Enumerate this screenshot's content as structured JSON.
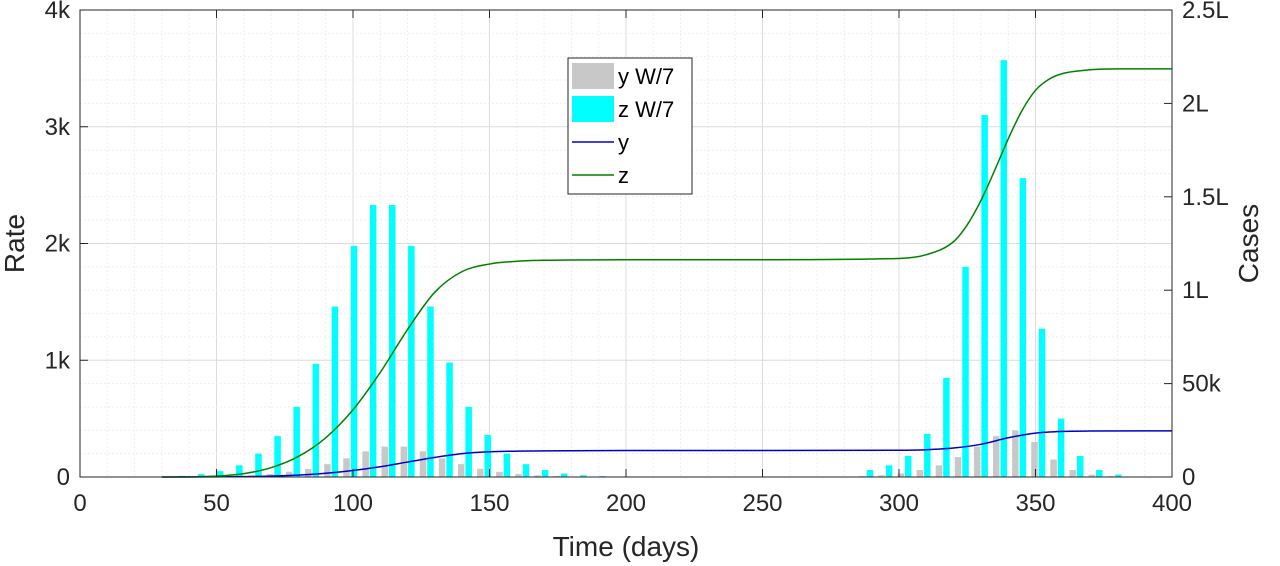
{
  "chart_data": {
    "type": "bar+line",
    "title": "",
    "xlabel": "Time (days)",
    "ylabel_left": "Rate",
    "ylabel_right": "Cases",
    "xlim": [
      0,
      400
    ],
    "ylim_left": [
      0,
      4000
    ],
    "ylim_right": [
      0,
      250000
    ],
    "x_ticks": [
      0,
      50,
      100,
      150,
      200,
      250,
      300,
      350,
      400
    ],
    "y_ticks_left": [
      {
        "value": 0,
        "label": "0"
      },
      {
        "value": 1000,
        "label": "1k"
      },
      {
        "value": 2000,
        "label": "2k"
      },
      {
        "value": 3000,
        "label": "3k"
      },
      {
        "value": 4000,
        "label": "4k"
      }
    ],
    "y_ticks_right": [
      {
        "value": 0,
        "label": "0"
      },
      {
        "value": 50000,
        "label": "50k"
      },
      {
        "value": 100000,
        "label": "1L"
      },
      {
        "value": 150000,
        "label": "1.5L"
      },
      {
        "value": 200000,
        "label": "2L"
      },
      {
        "value": 250000,
        "label": "2.5L"
      }
    ],
    "grid": true,
    "legend_position": "top-center",
    "bars_x": [
      36,
      43,
      50,
      57,
      64,
      71,
      78,
      85,
      92,
      99,
      106,
      113,
      120,
      127,
      134,
      141,
      148,
      155,
      162,
      169,
      176,
      183,
      190,
      197,
      204,
      288,
      295,
      302,
      309,
      316,
      323,
      330,
      337,
      344,
      351,
      358,
      365,
      372,
      379
    ],
    "bar_series": [
      {
        "name": "y W/7",
        "color": "#c8c8c8",
        "axis": "left",
        "values": [
          1,
          2,
          4,
          8,
          15,
          25,
          45,
          70,
          110,
          160,
          220,
          260,
          260,
          220,
          160,
          110,
          70,
          45,
          25,
          15,
          8,
          4,
          2,
          1,
          1,
          8,
          15,
          30,
          60,
          100,
          170,
          260,
          350,
          400,
          300,
          150,
          60,
          20,
          8
        ]
      },
      {
        "name": "z W/7",
        "color": "#00ffff",
        "axis": "left",
        "values": [
          10,
          25,
          50,
          100,
          200,
          350,
          600,
          970,
          1460,
          1980,
          2330,
          2330,
          1980,
          1460,
          980,
          600,
          360,
          200,
          110,
          60,
          30,
          15,
          8,
          4,
          2,
          60,
          100,
          180,
          370,
          850,
          1800,
          3100,
          3570,
          2560,
          1270,
          500,
          180,
          60,
          20
        ]
      }
    ],
    "line_series": [
      {
        "name": "y",
        "color": "#0000cd",
        "axis": "right",
        "x": [
          30,
          60,
          80,
          90,
          100,
          110,
          120,
          130,
          140,
          150,
          170,
          200,
          250,
          300,
          310,
          320,
          330,
          340,
          350,
          360,
          370,
          400
        ],
        "values": [
          0,
          200,
          1000,
          2000,
          3500,
          5500,
          8000,
          10500,
          12500,
          13500,
          14000,
          14200,
          14200,
          14300,
          14600,
          15500,
          17500,
          21000,
          23500,
          24400,
          24600,
          24700
        ]
      },
      {
        "name": "z",
        "color": "#008000",
        "axis": "right",
        "x": [
          30,
          50,
          60,
          70,
          80,
          90,
          100,
          110,
          120,
          130,
          140,
          150,
          160,
          170,
          180,
          200,
          250,
          300,
          310,
          320,
          325,
          330,
          335,
          340,
          345,
          350,
          355,
          360,
          370,
          380,
          400
        ],
        "values": [
          0,
          500,
          1800,
          5000,
          11000,
          21000,
          36000,
          56000,
          79000,
          99000,
          110000,
          114000,
          115500,
          116000,
          116200,
          116300,
          116300,
          117000,
          119000,
          126000,
          135000,
          148000,
          164000,
          181000,
          196000,
          207000,
          213000,
          216000,
          218000,
          218500,
          218500
        ]
      }
    ],
    "legend": [
      {
        "label": "y W/7",
        "kind": "bar",
        "color": "#c8c8c8"
      },
      {
        "label": "z W/7",
        "kind": "bar",
        "color": "#00ffff"
      },
      {
        "label": "y",
        "kind": "line",
        "color": "#0000cd"
      },
      {
        "label": "z",
        "kind": "line",
        "color": "#008000"
      }
    ]
  }
}
